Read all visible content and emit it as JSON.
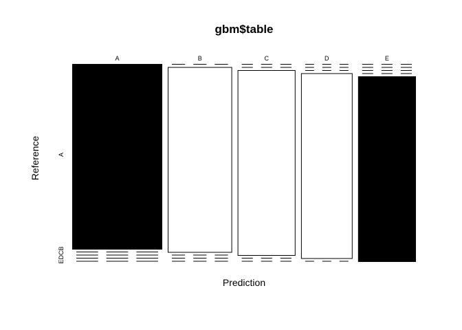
{
  "chart_data": {
    "type": "mosaic",
    "title": "gbm$table",
    "xlabel": "Prediction",
    "ylabel": "Reference",
    "columns": [
      "A",
      "B",
      "C",
      "D",
      "E"
    ],
    "rows": [
      "A",
      "B",
      "C",
      "D",
      "E"
    ],
    "row_tick_labels": {
      "major": "A",
      "minor": "EDCB"
    },
    "cell_share": [
      [
        0.95,
        0.01,
        0.01,
        0.01,
        0.02
      ],
      [
        0.02,
        0.95,
        0.01,
        0.01,
        0.01
      ],
      [
        0.01,
        0.02,
        0.95,
        0.01,
        0.01
      ],
      [
        0.01,
        0.01,
        0.03,
        0.94,
        0.01
      ],
      [
        0.01,
        0.01,
        0.01,
        0.02,
        0.95
      ]
    ],
    "column_share": [
      0.28,
      0.2,
      0.18,
      0.16,
      0.18
    ],
    "diagonal_shading": [
      "black",
      "white",
      "white",
      "white",
      "black"
    ],
    "colors": {
      "ink": "#000000",
      "background": "#ffffff"
    }
  }
}
